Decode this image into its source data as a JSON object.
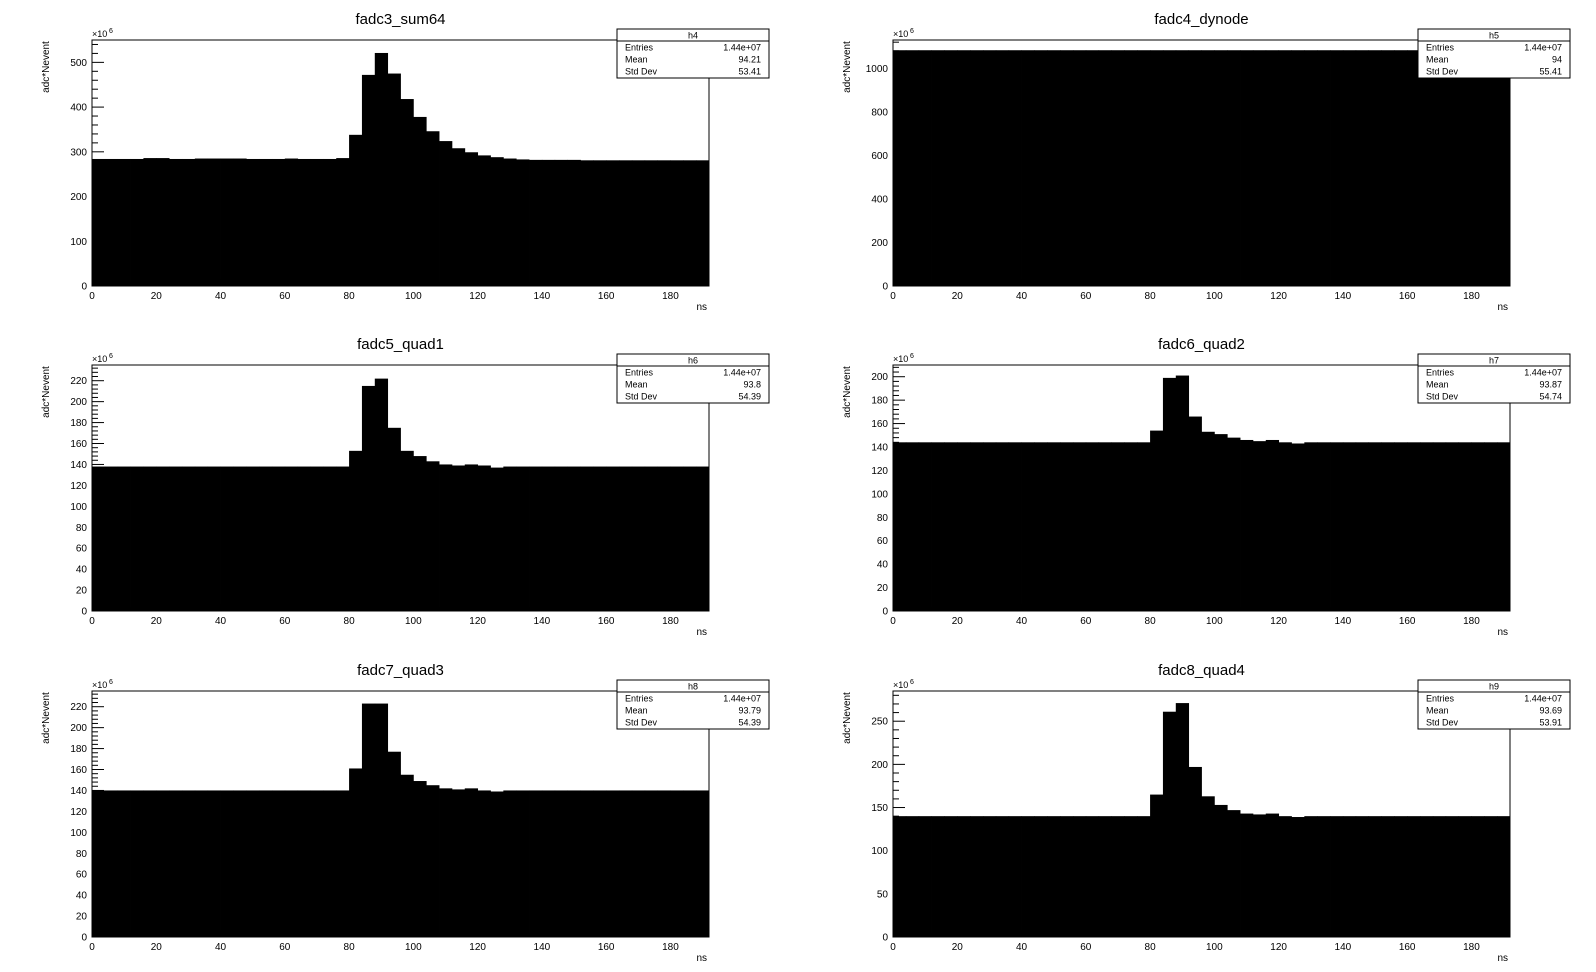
{
  "chart_data": [
    {
      "type": "bar",
      "title": "fadc3_sum64",
      "xlabel": "ns",
      "ylabel": "adc*Nevent",
      "y_multiplier": "×10",
      "y_multiplier_exp": "6",
      "xlim": [
        0,
        192
      ],
      "ylim": [
        0,
        550
      ],
      "xticks": [
        "0",
        "20",
        "40",
        "60",
        "80",
        "100",
        "120",
        "140",
        "160",
        "180"
      ],
      "yticks": [
        "0",
        "100",
        "200",
        "300",
        "400",
        "500"
      ],
      "bin_width": 4,
      "values": [
        284,
        284,
        284,
        284,
        286,
        286,
        284,
        284,
        285,
        285,
        285,
        285,
        284,
        284,
        284,
        285,
        284,
        284,
        284,
        286,
        338,
        472,
        521,
        475,
        418,
        378,
        346,
        324,
        308,
        299,
        292,
        288,
        285,
        283,
        282,
        282,
        282,
        282,
        281,
        281,
        281,
        281,
        281,
        281,
        281,
        281,
        281,
        281
      ],
      "stats": {
        "name": "h4",
        "rows": [
          {
            "label": "Entries",
            "value": "1.44e+07"
          },
          {
            "label": "Mean",
            "value": "94.21"
          },
          {
            "label": "Std Dev",
            "value": "53.41"
          }
        ]
      }
    },
    {
      "type": "bar",
      "title": "fadc4_dynode",
      "xlabel": "ns",
      "ylabel": "adc*Nevent",
      "y_multiplier": "×10",
      "y_multiplier_exp": "6",
      "xlim": [
        0,
        192
      ],
      "ylim": [
        0,
        1130
      ],
      "xticks": [
        "0",
        "20",
        "40",
        "60",
        "80",
        "100",
        "120",
        "140",
        "160",
        "180"
      ],
      "yticks": [
        "0",
        "200",
        "400",
        "600",
        "800",
        "1000"
      ],
      "bin_width": 4,
      "values": [
        1083,
        1083,
        1083,
        1083,
        1083,
        1083,
        1083,
        1083,
        1083,
        1083,
        1083,
        1083,
        1083,
        1083,
        1083,
        1083,
        1083,
        1083,
        1083,
        1083,
        1083,
        1083,
        1083,
        1083,
        1083,
        1083,
        1083,
        1083,
        1083,
        1083,
        1083,
        1083,
        1083,
        1083,
        1083,
        1083,
        1083,
        1083,
        1083,
        1083,
        1083,
        1083,
        1083,
        1083,
        1083,
        1083,
        1083,
        1083
      ],
      "stats": {
        "name": "h5",
        "rows": [
          {
            "label": "Entries",
            "value": "1.44e+07"
          },
          {
            "label": "Mean",
            "value": "94"
          },
          {
            "label": "Std Dev",
            "value": "55.41"
          }
        ]
      }
    },
    {
      "type": "bar",
      "title": "fadc5_quad1",
      "xlabel": "ns",
      "ylabel": "adc*Nevent",
      "y_multiplier": "×10",
      "y_multiplier_exp": "6",
      "xlim": [
        0,
        192
      ],
      "ylim": [
        0,
        235
      ],
      "xticks": [
        "0",
        "20",
        "40",
        "60",
        "80",
        "100",
        "120",
        "140",
        "160",
        "180"
      ],
      "yticks": [
        "0",
        "20",
        "40",
        "60",
        "80",
        "100",
        "120",
        "140",
        "160",
        "180",
        "200",
        "220"
      ],
      "bin_width": 4,
      "values": [
        138,
        138,
        138,
        138,
        138,
        138,
        138,
        138,
        138,
        138,
        138,
        138,
        138,
        138,
        138,
        138,
        138,
        138,
        138,
        138,
        153,
        215,
        222,
        175,
        153,
        148,
        143,
        140,
        139,
        140,
        139,
        137,
        138,
        138,
        138,
        138,
        138,
        138,
        138,
        138,
        138,
        138,
        138,
        138,
        138,
        138,
        138,
        138
      ],
      "stats": {
        "name": "h6",
        "rows": [
          {
            "label": "Entries",
            "value": "1.44e+07"
          },
          {
            "label": "Mean",
            "value": "93.8"
          },
          {
            "label": "Std Dev",
            "value": "54.39"
          }
        ]
      }
    },
    {
      "type": "bar",
      "title": "fadc6_quad2",
      "xlabel": "ns",
      "ylabel": "adc*Nevent",
      "y_multiplier": "×10",
      "y_multiplier_exp": "6",
      "xlim": [
        0,
        192
      ],
      "ylim": [
        0,
        210
      ],
      "xticks": [
        "0",
        "20",
        "40",
        "60",
        "80",
        "100",
        "120",
        "140",
        "160",
        "180"
      ],
      "yticks": [
        "0",
        "20",
        "40",
        "60",
        "80",
        "100",
        "120",
        "140",
        "160",
        "180",
        "200"
      ],
      "bin_width": 4,
      "values": [
        144,
        144,
        144,
        144,
        144,
        144,
        144,
        144,
        144,
        144,
        144,
        144,
        144,
        144,
        144,
        144,
        144,
        144,
        144,
        144,
        154,
        199,
        201,
        166,
        153,
        151,
        148,
        146,
        145,
        146,
        144,
        143,
        144,
        144,
        144,
        144,
        144,
        144,
        144,
        144,
        144,
        144,
        144,
        144,
        144,
        144,
        144,
        144
      ],
      "stats": {
        "name": "h7",
        "rows": [
          {
            "label": "Entries",
            "value": "1.44e+07"
          },
          {
            "label": "Mean",
            "value": "93.87"
          },
          {
            "label": "Std Dev",
            "value": "54.74"
          }
        ]
      }
    },
    {
      "type": "bar",
      "title": "fadc7_quad3",
      "xlabel": "ns",
      "ylabel": "adc*Nevent",
      "y_multiplier": "×10",
      "y_multiplier_exp": "6",
      "xlim": [
        0,
        192
      ],
      "ylim": [
        0,
        235
      ],
      "xticks": [
        "0",
        "20",
        "40",
        "60",
        "80",
        "100",
        "120",
        "140",
        "160",
        "180"
      ],
      "yticks": [
        "0",
        "20",
        "40",
        "60",
        "80",
        "100",
        "120",
        "140",
        "160",
        "180",
        "200",
        "220"
      ],
      "bin_width": 4,
      "values": [
        140,
        140,
        140,
        140,
        140,
        140,
        140,
        140,
        140,
        140,
        140,
        140,
        140,
        140,
        140,
        140,
        140,
        140,
        140,
        140,
        161,
        223,
        223,
        177,
        155,
        149,
        145,
        142,
        141,
        142,
        140,
        139,
        140,
        140,
        140,
        140,
        140,
        140,
        140,
        140,
        140,
        140,
        140,
        140,
        140,
        140,
        140,
        140
      ],
      "stats": {
        "name": "h8",
        "rows": [
          {
            "label": "Entries",
            "value": "1.44e+07"
          },
          {
            "label": "Mean",
            "value": "93.79"
          },
          {
            "label": "Std Dev",
            "value": "54.39"
          }
        ]
      }
    },
    {
      "type": "bar",
      "title": "fadc8_quad4",
      "xlabel": "ns",
      "ylabel": "adc*Nevent",
      "y_multiplier": "×10",
      "y_multiplier_exp": "6",
      "xlim": [
        0,
        192
      ],
      "ylim": [
        0,
        285
      ],
      "xticks": [
        "0",
        "20",
        "40",
        "60",
        "80",
        "100",
        "120",
        "140",
        "160",
        "180"
      ],
      "yticks": [
        "0",
        "50",
        "100",
        "150",
        "200",
        "250"
      ],
      "bin_width": 4,
      "values": [
        140,
        140,
        140,
        140,
        140,
        140,
        140,
        140,
        140,
        140,
        140,
        140,
        140,
        140,
        140,
        140,
        140,
        140,
        140,
        140,
        165,
        261,
        271,
        197,
        163,
        153,
        147,
        143,
        142,
        143,
        140,
        139,
        140,
        140,
        140,
        140,
        140,
        140,
        140,
        140,
        140,
        140,
        140,
        140,
        140,
        140,
        140,
        140
      ],
      "stats": {
        "name": "h9",
        "rows": [
          {
            "label": "Entries",
            "value": "1.44e+07"
          },
          {
            "label": "Mean",
            "value": "93.69"
          },
          {
            "label": "Std Dev",
            "value": "53.91"
          }
        ]
      }
    }
  ]
}
